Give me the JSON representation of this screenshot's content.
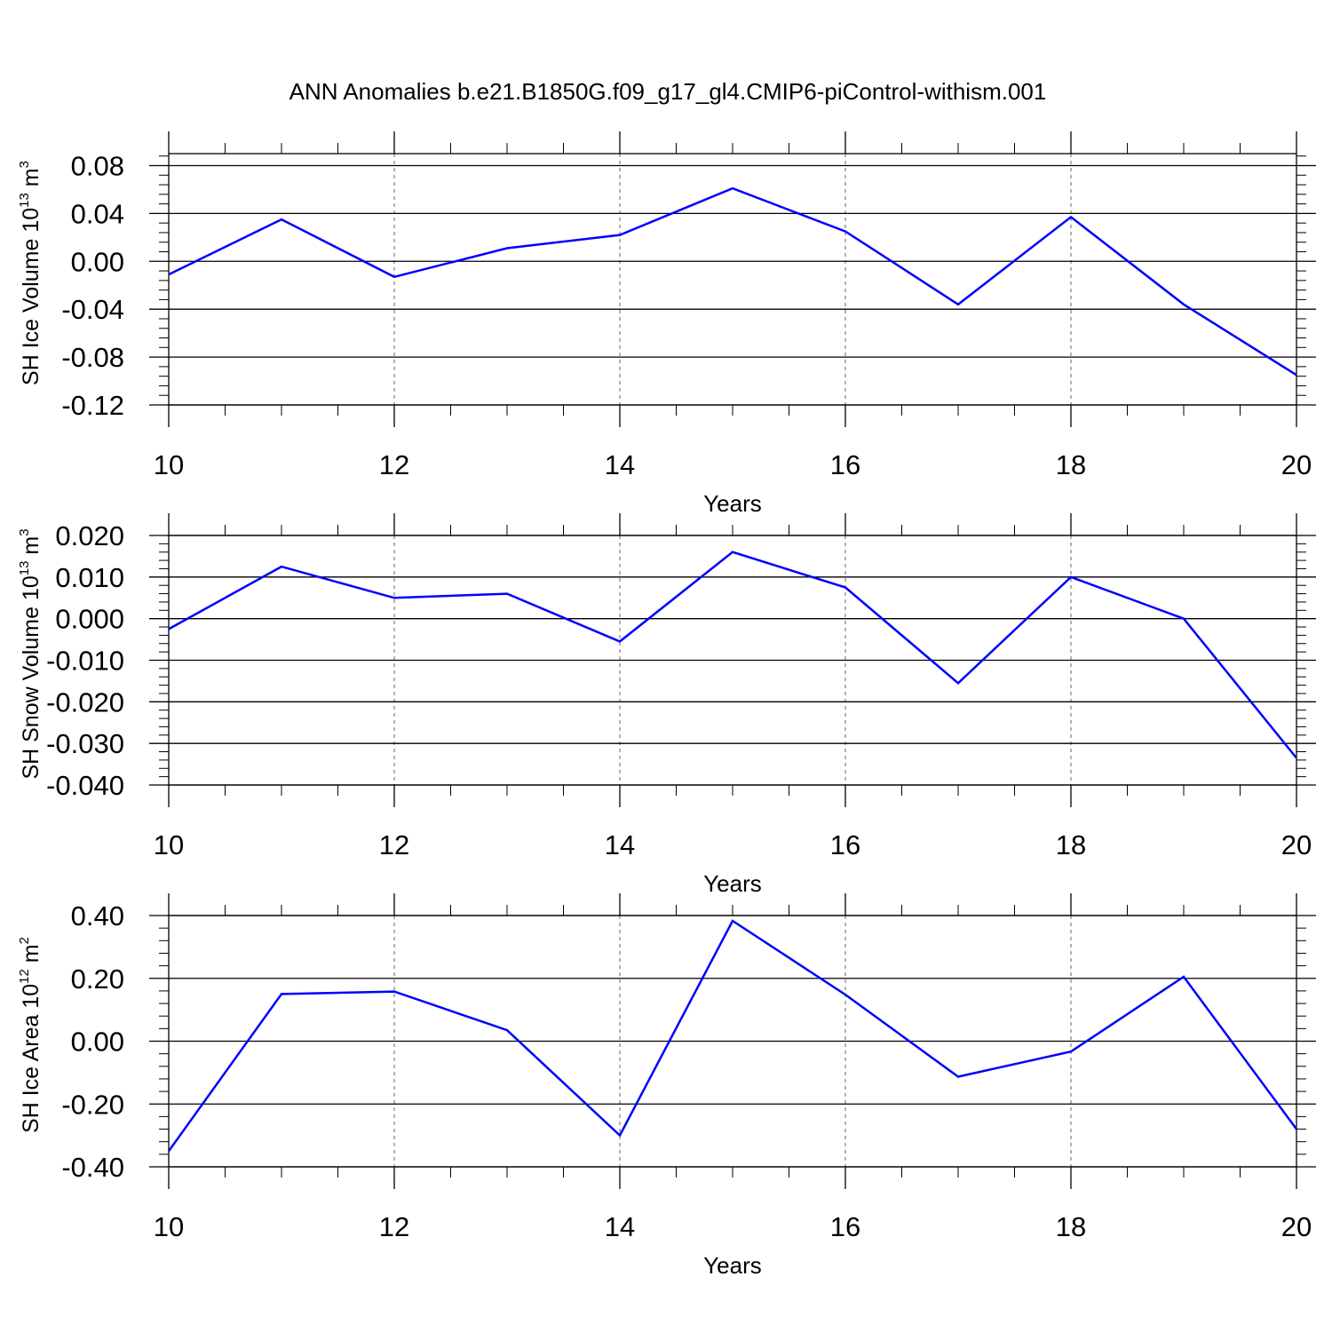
{
  "title": "ANN Anomalies b.e21.B1850G.f09_g17_gl4.CMIP6-piControl-withism.001",
  "colors": {
    "series": "#0000ff",
    "axis": "#000000",
    "grid": "#666666"
  },
  "chart_data": [
    {
      "type": "line",
      "ylabel": {
        "text": "SH Ice Volume 10",
        "sup": "13",
        "unit": " m",
        "unit_sup": "3"
      },
      "xlabel": "Years",
      "xlim": [
        10,
        20
      ],
      "ylim": [
        -0.12,
        0.09
      ],
      "x_ticks": [
        "10",
        "12",
        "14",
        "16",
        "18",
        "20"
      ],
      "y_ticks": [
        {
          "v": 0.08,
          "label": "0.08"
        },
        {
          "v": 0.04,
          "label": "0.04"
        },
        {
          "v": 0.0,
          "label": "0.00"
        },
        {
          "v": -0.04,
          "label": "-0.04"
        },
        {
          "v": -0.08,
          "label": "-0.08"
        },
        {
          "v": -0.12,
          "label": "-0.12"
        }
      ],
      "x": [
        10,
        11,
        12,
        13,
        14,
        15,
        16,
        17,
        18,
        19,
        20
      ],
      "values": [
        -0.011,
        0.035,
        -0.013,
        0.011,
        0.022,
        0.061,
        0.025,
        -0.036,
        0.037,
        -0.036,
        -0.095
      ]
    },
    {
      "type": "line",
      "ylabel": {
        "text": "SH Snow Volume 10",
        "sup": "13",
        "unit": " m",
        "unit_sup": "3"
      },
      "xlabel": "Years",
      "xlim": [
        10,
        20
      ],
      "ylim": [
        -0.04,
        0.02
      ],
      "x_ticks": [
        "10",
        "12",
        "14",
        "16",
        "18",
        "20"
      ],
      "y_ticks": [
        {
          "v": 0.02,
          "label": "0.020"
        },
        {
          "v": 0.01,
          "label": "0.010"
        },
        {
          "v": 0.0,
          "label": "0.000"
        },
        {
          "v": -0.01,
          "label": "-0.010"
        },
        {
          "v": -0.02,
          "label": "-0.020"
        },
        {
          "v": -0.03,
          "label": "-0.030"
        },
        {
          "v": -0.04,
          "label": "-0.040"
        }
      ],
      "x": [
        10,
        11,
        12,
        13,
        14,
        15,
        16,
        17,
        18,
        19,
        20
      ],
      "values": [
        -0.0025,
        0.0125,
        0.005,
        0.006,
        -0.0055,
        0.016,
        0.0075,
        -0.0155,
        0.01,
        0.0,
        -0.0335
      ]
    },
    {
      "type": "line",
      "ylabel": {
        "text": "SH Ice Area 10",
        "sup": "12",
        "unit": " m",
        "unit_sup": "2"
      },
      "xlabel": "Years",
      "xlim": [
        10,
        20
      ],
      "ylim": [
        -0.4,
        0.4
      ],
      "x_ticks": [
        "10",
        "12",
        "14",
        "16",
        "18",
        "20"
      ],
      "y_ticks": [
        {
          "v": 0.4,
          "label": "0.40"
        },
        {
          "v": 0.2,
          "label": "0.20"
        },
        {
          "v": 0.0,
          "label": "0.00"
        },
        {
          "v": -0.2,
          "label": "-0.20"
        },
        {
          "v": -0.4,
          "label": "-0.40"
        }
      ],
      "x": [
        10,
        11,
        12,
        13,
        14,
        15,
        16,
        17,
        18,
        19,
        20
      ],
      "values": [
        -0.35,
        0.15,
        0.158,
        0.035,
        -0.3,
        0.383,
        0.148,
        -0.113,
        -0.033,
        0.205,
        -0.28
      ]
    }
  ]
}
